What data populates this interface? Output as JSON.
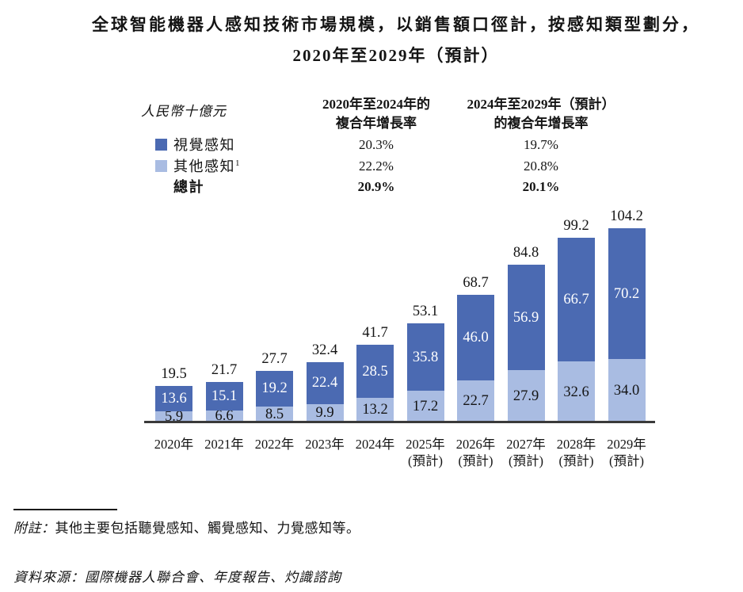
{
  "title": {
    "line1": "全球智能機器人感知技術市場規模，以銷售額口徑計，按感知類型劃分，",
    "line2": "2020年至2029年（預計）"
  },
  "unit_label": "人民幣十億元",
  "cagr_table": {
    "col1_header": [
      "2020年至2024年的",
      "複合年增長率"
    ],
    "col2_header": [
      "2024年至2029年（預計）",
      "的複合年增長率"
    ],
    "rows": [
      {
        "label": "視覺感知",
        "sup": "",
        "col1": "20.3%",
        "col2": "19.7%"
      },
      {
        "label": "其他感知",
        "sup": "1",
        "col1": "22.2%",
        "col2": "20.8%"
      },
      {
        "label": "總計",
        "sup": "",
        "col1": "20.9%",
        "col2": "20.1%"
      }
    ]
  },
  "chart_data": {
    "type": "bar",
    "stacked": true,
    "title": "全球智能機器人感知技術市場規模，以銷售額口徑計，按感知類型劃分，2020年至2029年（預計）",
    "unit": "人民幣十億元",
    "categories": [
      "2020年",
      "2021年",
      "2022年",
      "2023年",
      "2024年",
      "2025年",
      "2026年",
      "2027年",
      "2028年",
      "2029年"
    ],
    "category_sublabels": [
      "",
      "",
      "",
      "",
      "",
      "(預計)",
      "(預計)",
      "(預計)",
      "(預計)",
      "(預計)"
    ],
    "series": [
      {
        "name": "視覺感知",
        "color": "#4B6AB2",
        "label_color": "#ffffff",
        "values": [
          13.6,
          15.1,
          19.2,
          22.4,
          28.5,
          35.8,
          46.0,
          56.9,
          66.7,
          70.2
        ]
      },
      {
        "name": "其他感知",
        "color": "#A9BCE2",
        "label_color": "#141414",
        "values": [
          5.9,
          6.6,
          8.5,
          9.9,
          13.2,
          17.2,
          22.7,
          27.9,
          32.6,
          34.0
        ]
      }
    ],
    "totals": [
      19.5,
      21.7,
      27.7,
      32.4,
      41.7,
      53.1,
      68.7,
      84.8,
      99.2,
      104.2
    ],
    "ylim": [
      0,
      110
    ],
    "grid": false,
    "legend_position": "top-left"
  },
  "footnote": {
    "prefix": "附註：",
    "body": "其他主要包括聽覺感知、觸覺感知、力覺感知等。"
  },
  "source": {
    "text": "資料來源：國際機器人聯合會、年度報告、灼識諮詢"
  }
}
